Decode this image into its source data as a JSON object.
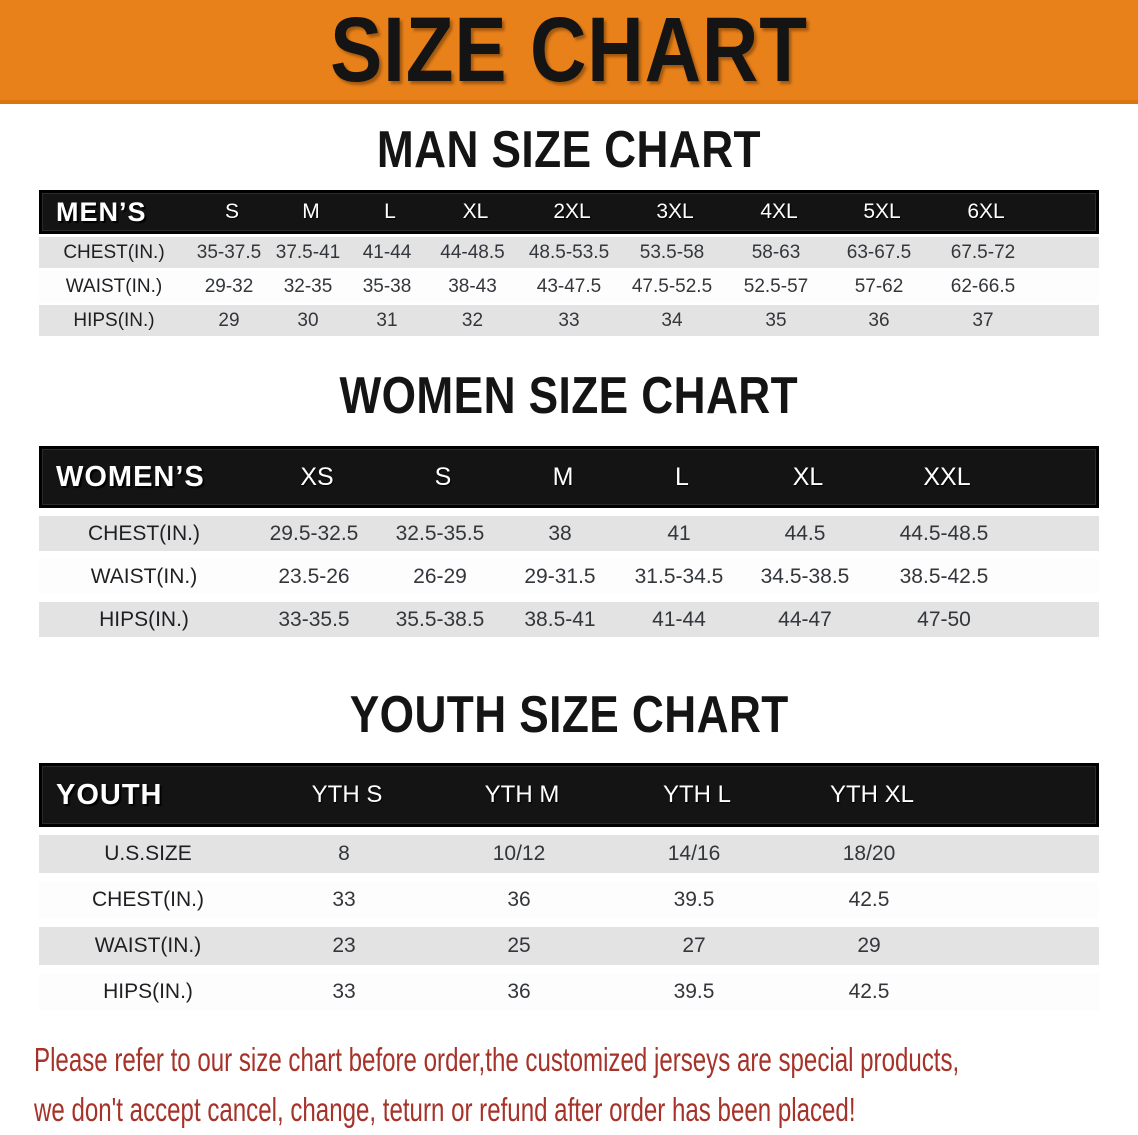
{
  "banner": {
    "title": "SIZE CHART"
  },
  "colors": {
    "banner_bg": "#E8811A",
    "banner_edge": "#D9750E",
    "header_bar_bg": "#141414",
    "shade_row_bg": "#E3E3E3",
    "footer_red": "#A5332A"
  },
  "sections": [
    {
      "title": "MAN SIZE CHART",
      "table": {
        "corner_label": "MEN’S",
        "columns": [
          "S",
          "M",
          "L",
          "XL",
          "2XL",
          "3XL",
          "4XL",
          "5XL",
          "6XL"
        ],
        "rows": [
          {
            "label": "CHEST(IN.)",
            "values": [
              "35-37.5",
              "37.5-41",
              "41-44",
              "44-48.5",
              "48.5-53.5",
              "53.5-58",
              "58-63",
              "63-67.5",
              "67.5-72"
            ]
          },
          {
            "label": "WAIST(IN.)",
            "values": [
              "29-32",
              "32-35",
              "35-38",
              "38-43",
              "43-47.5",
              "47.5-52.5",
              "52.5-57",
              "57-62",
              "62-66.5"
            ]
          },
          {
            "label": "HIPS(IN.)",
            "values": [
              "29",
              "30",
              "31",
              "32",
              "33",
              "34",
              "35",
              "36",
              "37"
            ]
          }
        ]
      }
    },
    {
      "title": "WOMEN SIZE CHART",
      "table": {
        "corner_label": "WOMEN’S",
        "columns": [
          "XS",
          "S",
          "M",
          "L",
          "XL",
          "XXL"
        ],
        "rows": [
          {
            "label": "CHEST(IN.)",
            "values": [
              "29.5-32.5",
              "32.5-35.5",
              "38",
              "41",
              "44.5",
              "44.5-48.5"
            ]
          },
          {
            "label": "WAIST(IN.)",
            "values": [
              "23.5-26",
              "26-29",
              "29-31.5",
              "31.5-34.5",
              "34.5-38.5",
              "38.5-42.5"
            ]
          },
          {
            "label": "HIPS(IN.)",
            "values": [
              "33-35.5",
              "35.5-38.5",
              "38.5-41",
              "41-44",
              "44-47",
              "47-50"
            ]
          }
        ]
      }
    },
    {
      "title": "YOUTH SIZE CHART",
      "table": {
        "corner_label": "YOUTH",
        "columns": [
          "YTH S",
          "YTH M",
          "YTH L",
          "YTH XL"
        ],
        "rows": [
          {
            "label": "U.S.SIZE",
            "values": [
              "8",
              "10/12",
              "14/16",
              "18/20"
            ]
          },
          {
            "label": "CHEST(IN.)",
            "values": [
              "33",
              "36",
              "39.5",
              "42.5"
            ]
          },
          {
            "label": "WAIST(IN.)",
            "values": [
              "23",
              "25",
              "27",
              "29"
            ]
          },
          {
            "label": "HIPS(IN.)",
            "values": [
              "33",
              "36",
              "39.5",
              "42.5"
            ]
          }
        ]
      }
    }
  ],
  "footer": {
    "lines": [
      "Please refer to our size chart before order,the customized jerseys are special products,",
      "we don't accept cancel, change, teturn or refund after order has been placed!"
    ]
  }
}
